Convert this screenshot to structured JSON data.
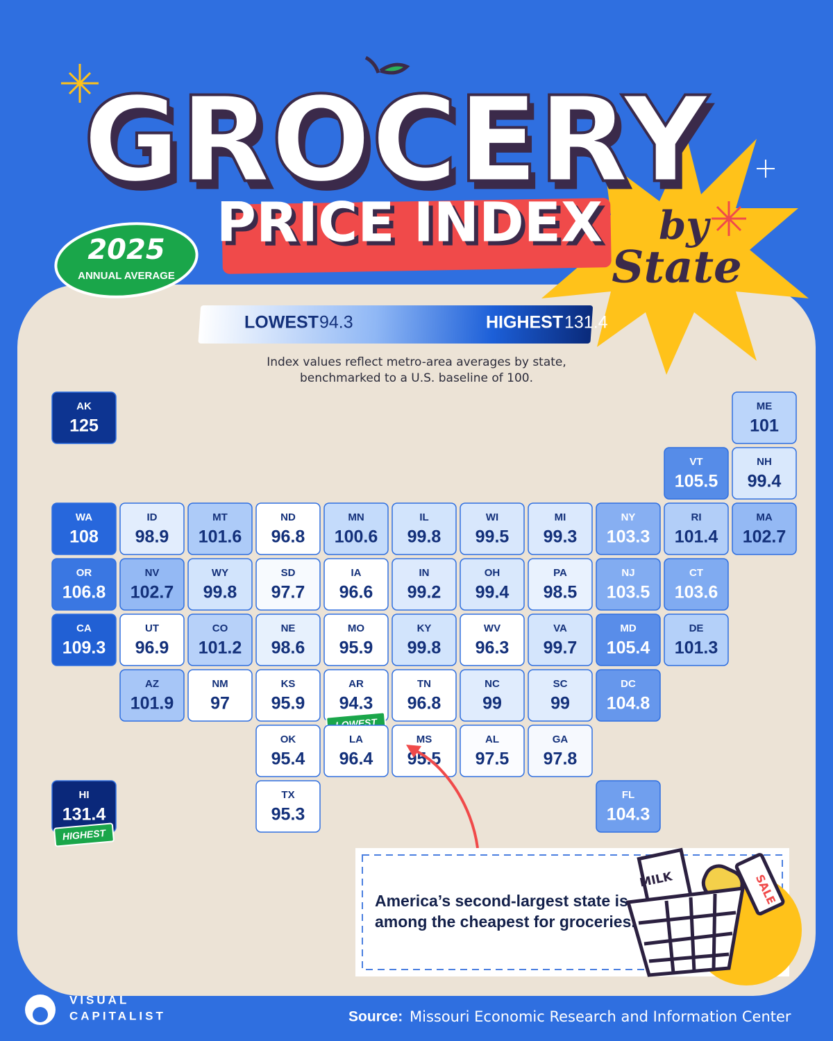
{
  "header": {
    "title_line1": "GROCERY",
    "title_line2": "PRICE INDEX",
    "title_by": "by",
    "title_state": "State",
    "badge_year": "2025",
    "badge_text": "ANNUAL AVERAGE"
  },
  "legend": {
    "low_label": "LOWEST",
    "low_value": 94.3,
    "high_label": "HIGHEST",
    "high_value": 131.4
  },
  "subtitle": [
    "Index values reflect metro-area averages by state,",
    "benchmarked to a U.S. baseline of 100."
  ],
  "states": [
    {
      "abbr": "WA",
      "value": 108
    },
    {
      "abbr": "OR",
      "value": 106.8
    },
    {
      "abbr": "CA",
      "value": 109.3
    },
    {
      "abbr": "NV",
      "value": 102.7
    },
    {
      "abbr": "ID",
      "value": 98.9
    },
    {
      "abbr": "MT",
      "value": 101.6
    },
    {
      "abbr": "WY",
      "value": 99.8
    },
    {
      "abbr": "UT",
      "value": 96.9
    },
    {
      "abbr": "CO",
      "value": 101.2
    },
    {
      "abbr": "AZ",
      "value": 101.9
    },
    {
      "abbr": "NM",
      "value": 97
    },
    {
      "abbr": "ND",
      "value": 96.8
    },
    {
      "abbr": "SD",
      "value": 97.7
    },
    {
      "abbr": "NE",
      "value": 98.6
    },
    {
      "abbr": "KS",
      "value": 95.9
    },
    {
      "abbr": "OK",
      "value": 95.4
    },
    {
      "abbr": "TX",
      "value": 95.3
    },
    {
      "abbr": "MN",
      "value": 100.6
    },
    {
      "abbr": "IA",
      "value": 96.6
    },
    {
      "abbr": "MO",
      "value": 95.9
    },
    {
      "abbr": "AR",
      "value": 94.3
    },
    {
      "abbr": "LA",
      "value": 96.4
    },
    {
      "abbr": "WI",
      "value": 99.5
    },
    {
      "abbr": "IL",
      "value": 99.8
    },
    {
      "abbr": "MI",
      "value": 99.3
    },
    {
      "abbr": "IN",
      "value": 99.2
    },
    {
      "abbr": "OH",
      "value": 99.4
    },
    {
      "abbr": "KY",
      "value": 99.8
    },
    {
      "abbr": "TN",
      "value": 96.8
    },
    {
      "abbr": "MS",
      "value": 95.5
    },
    {
      "abbr": "AL",
      "value": 97.5
    },
    {
      "abbr": "GA",
      "value": 97.8
    },
    {
      "abbr": "FL",
      "value": 104.3
    },
    {
      "abbr": "SC",
      "value": 99
    },
    {
      "abbr": "NC",
      "value": 99
    },
    {
      "abbr": "VA",
      "value": 99.7
    },
    {
      "abbr": "WV",
      "value": 96.3
    },
    {
      "abbr": "PA",
      "value": 98.5
    },
    {
      "abbr": "NY",
      "value": 103.3
    },
    {
      "abbr": "ME",
      "value": 101
    },
    {
      "abbr": "NH",
      "value": 99.4
    },
    {
      "abbr": "VT",
      "value": 105.5
    },
    {
      "abbr": "MA",
      "value": 102.7
    },
    {
      "abbr": "RI",
      "value": 101.4
    },
    {
      "abbr": "CT",
      "value": 103.6
    },
    {
      "abbr": "NJ",
      "value": 103.5
    },
    {
      "abbr": "DE",
      "value": 101.3
    },
    {
      "abbr": "MD",
      "value": 105.4
    },
    {
      "abbr": "DC",
      "value": 104.8
    },
    {
      "abbr": "AK",
      "value": 125
    },
    {
      "abbr": "HI",
      "value": 131.4
    }
  ],
  "callout": {
    "lines": [
      "America’s second-largest state is",
      "among the cheapest for groceries."
    ],
    "milk": "MILK",
    "sale": "SALE"
  },
  "footer": {
    "logo_line1": "VISUAL",
    "logo_line2": "CAPITALIST",
    "source_label": "Source:",
    "source_text": "Missouri Economic Research and Information Center"
  }
}
